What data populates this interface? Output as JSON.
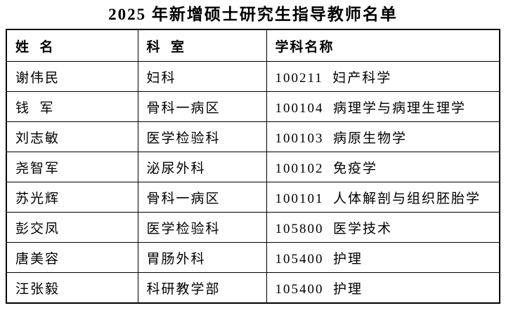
{
  "title": "2025 年新增硕士研究生指导教师名单",
  "table": {
    "headers": [
      "姓  名",
      "科  室",
      "学科名称"
    ],
    "rows": [
      [
        "谢伟民",
        "妇科",
        "100211  妇产科学"
      ],
      [
        "钱  军",
        "骨科一病区",
        "100104  病理学与病理生理学"
      ],
      [
        "刘志敏",
        "医学检验科",
        "100103  病原生物学"
      ],
      [
        "尧智军",
        "泌尿外科",
        "100102  免疫学"
      ],
      [
        "苏光辉",
        "骨科一病区",
        "100101  人体解剖与组织胚胎学"
      ],
      [
        "彭交凤",
        "医学检验科",
        "105800  医学技术"
      ],
      [
        "唐美容",
        "胃肠外科",
        "105400  护理"
      ],
      [
        "汪张毅",
        "科研教学部",
        "105400  护理"
      ]
    ]
  },
  "colors": {
    "text": "#000000",
    "background": "#ffffff",
    "border": "#000000"
  }
}
